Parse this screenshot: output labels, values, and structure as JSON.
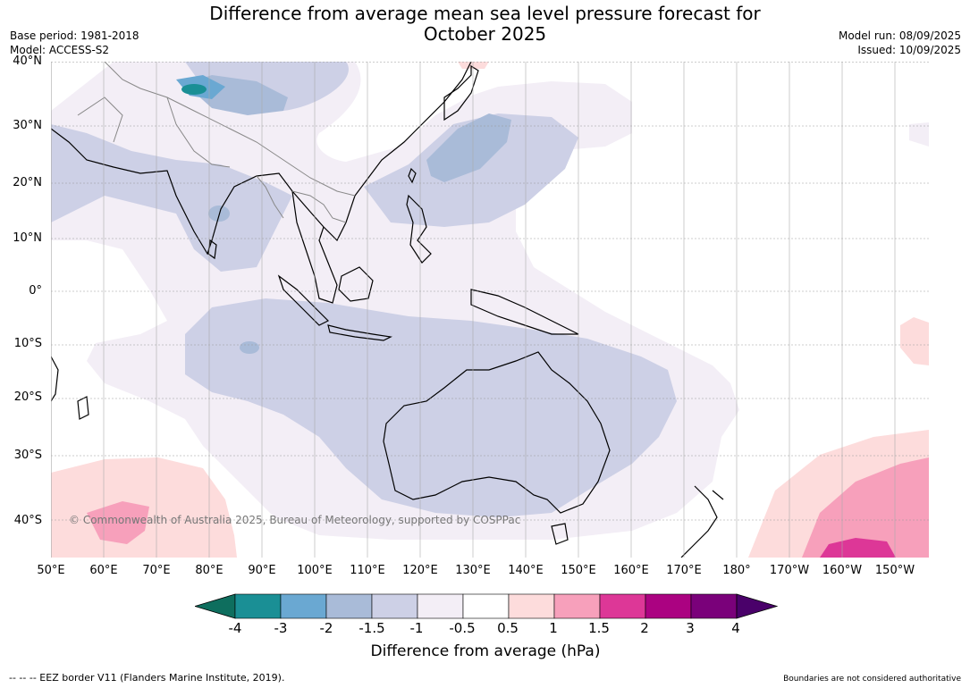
{
  "header": {
    "title_line1": "Difference from average mean sea level pressure forecast for",
    "title_line2": "October 2025",
    "base_period": "Base period: 1981-2018",
    "model": "Model: ACCESS-S2",
    "model_run": "Model run: 08/09/2025",
    "issued": "Issued: 10/09/2025"
  },
  "map": {
    "lat_labels": [
      "40°N",
      "30°N",
      "20°N",
      "10°N",
      "0°",
      "10°S",
      "20°S",
      "30°S",
      "40°S"
    ],
    "lon_labels": [
      "50°E",
      "60°E",
      "70°E",
      "80°E",
      "90°E",
      "100°E",
      "110°E",
      "120°E",
      "130°E",
      "140°E",
      "150°E",
      "160°E",
      "170°E",
      "180°",
      "170°W",
      "160°W",
      "150°W"
    ],
    "copyright": "© Commonwealth of Australia 2025, Bureau of Meteorology, supported by COSPPac"
  },
  "colorbar": {
    "ticks": [
      "-4",
      "-3",
      "-2",
      "-1.5",
      "-1",
      "-0.5",
      "0.5",
      "1",
      "1.5",
      "2",
      "3",
      "4"
    ],
    "colors": [
      "#1a8f95",
      "#6aa8d2",
      "#a9bbd8",
      "#cdd0e6",
      "#f3eef6",
      "#ffffff",
      "#fddcdc",
      "#f7a0bb",
      "#dd3797",
      "#ab0281",
      "#7a017a"
    ],
    "extend_low_color": "#0e6e5e",
    "extend_high_color": "#4a016a",
    "label": "Difference from average (hPa)"
  },
  "footer": {
    "eez_note": "--  --  -- EEZ border V11 (Flanders Marine Institute, 2019).",
    "boundaries_note": "Boundaries are not considered authoritative"
  }
}
